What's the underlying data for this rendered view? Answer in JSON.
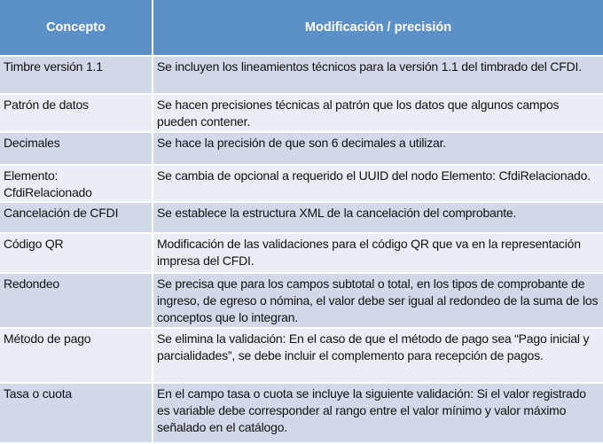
{
  "header": {
    "col1": "Concepto",
    "col2": "Modificación / precisión"
  },
  "colors": {
    "header_bg": "#5b90c8",
    "row_odd": "#d1d9e9",
    "row_even": "#e9edf4"
  },
  "rows": [
    {
      "concepto": "Timbre versión 1.1",
      "detalle": "Se incluyen los lineamientos técnicos para la versión 1.1 del timbrado del CFDI."
    },
    {
      "concepto": "Patrón de datos",
      "detalle": "Se hacen precisiones técnicas al patrón que los datos que algunos campos pueden contener."
    },
    {
      "concepto": "Decimales",
      "detalle": "Se hace la precisión de que son 6 decimales a utilizar."
    },
    {
      "concepto": "Elemento: CfdiRelacionado",
      "detalle": "Se cambia de opcional a requerido el UUID del nodo Elemento: CfdiRelacionado."
    },
    {
      "concepto": "Cancelación de CFDI",
      "detalle": "Se establece la estructura XML de la cancelación del comprobante."
    },
    {
      "concepto": "Código QR",
      "detalle": "Modificación de las validaciones para el código QR que va en la representación impresa del CFDI."
    },
    {
      "concepto": "Redondeo",
      "detalle": "Se precisa que para los campos subtotal o total, en los tipos de comprobante de ingreso, de egreso o nómina, el valor debe ser igual al redondeo de la suma de los conceptos que lo integran."
    },
    {
      "concepto": "Método de pago",
      "detalle": "Se elimina la validación: En el caso de que el método de pago sea “Pago inicial y parcialidades”, se debe incluir el complemento para recepción de pagos."
    },
    {
      "concepto": "Tasa o cuota",
      "detalle": "En el campo tasa o cuota se incluye la siguiente validación: Si el valor registrado es variable debe corresponder al rango entre el valor mínimo y valor máximo señalado en el catálogo."
    }
  ]
}
